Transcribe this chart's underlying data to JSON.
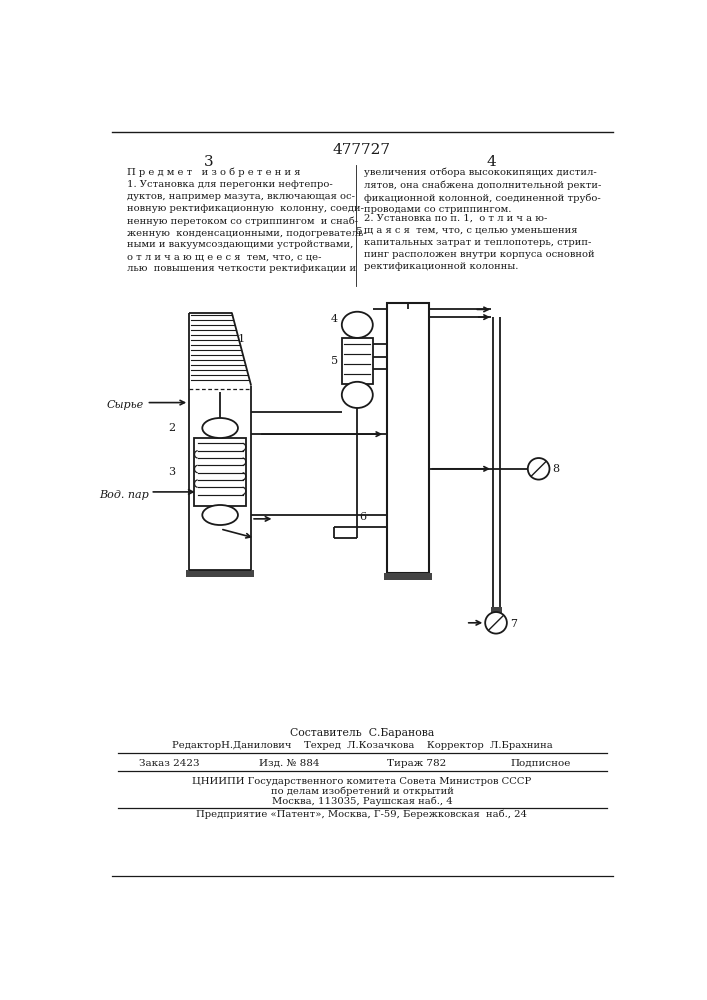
{
  "title_number": "477727",
  "page_left": "3",
  "page_right": "4",
  "text_left_title": "П р е д м е т   и з о б р е т е н и я",
  "text_left_p1": "1. Установка для перегонки нефтепро-\nдуктов, например мазута, включающая ос-\nновную ректификационную  колонну, соеди-\nненную перетоком со стриппингом  и снаб-\nженную  конденсационными, подогреватель-\nными и вакуумсоздающими устройствами,\nо т л и ч а ю щ е е с я  тем, что, с це-\nлью  повышения четкости ректификации и",
  "text_right_p1": "увеличения отбора высококипящих дистил-\nлятов, она снабжена дополнительной ректи-\nфикационной колонной, соединенной трубо-\nпроводами со стриппингом.",
  "text_right_p2": "2. Установка по п. 1,  о т л и ч а ю-\nщ а я с я  тем, что, с целью уменьшения\nкапитальных затрат и теплопотерь, стрип-\nпинг расположен внутри корпуса основной\nректификационной колонны.",
  "footer_composer": "Составитель  С.Баранова",
  "footer_editor": "РедакторН.Данилович    Техред  Л.Козачкова    Корректор  Л.Брахнина",
  "footer_order": "Заказ 2423",
  "footer_issue": "Изд. № 884",
  "footer_tirazh": "Тираж 782",
  "footer_podpisnoe": "Подписное",
  "footer_tsniipi": "ЦНИИПИ Государственного комитета Совета Министров СССР",
  "footer_address1": "по делам изобретений и открытий",
  "footer_address2": "Москва, 113035, Раушская наб., 4",
  "footer_predpr": "Предприятие «Патент», Москва, Г-59, Бережковская  наб., 24",
  "line_color": "#1a1a1a"
}
